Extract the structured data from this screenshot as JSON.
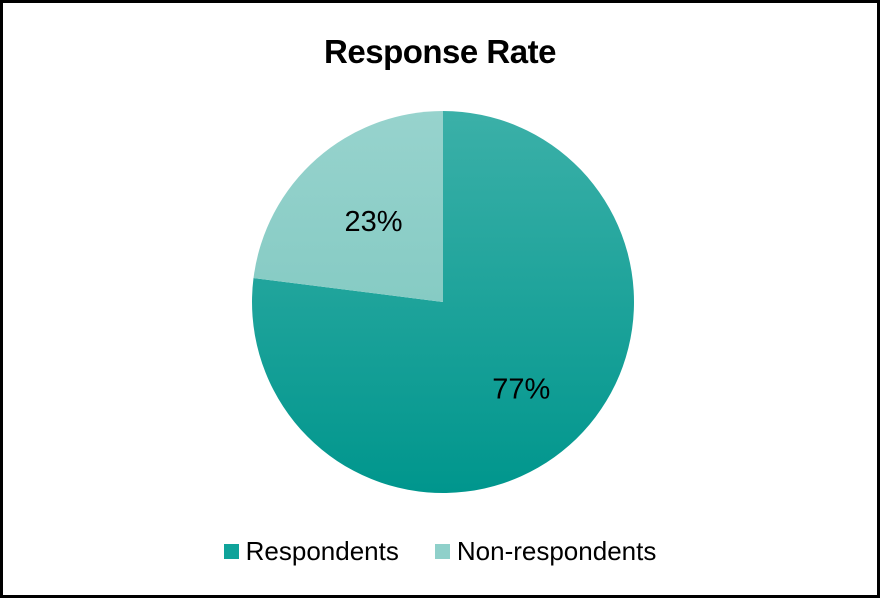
{
  "chart_data": {
    "type": "pie",
    "title": "Response Rate",
    "categories": [
      "Respondents",
      "Non-respondents"
    ],
    "values": [
      77,
      23
    ],
    "labels": [
      "77%",
      "23%"
    ],
    "legend_position": "bottom",
    "colors": [
      "#0fa39a",
      "#8fd0ca"
    ],
    "start_angle": "12 o'clock",
    "direction": "clockwise"
  }
}
